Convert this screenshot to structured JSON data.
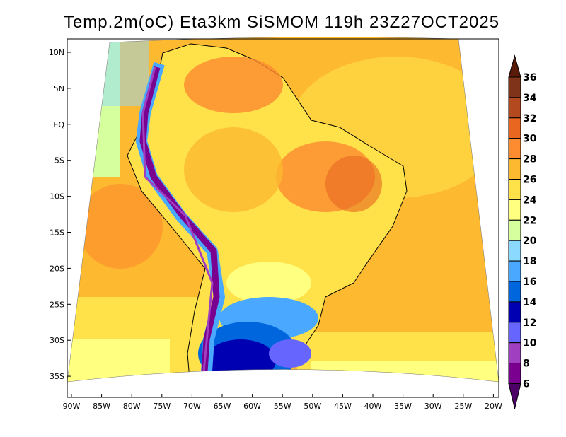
{
  "title": "Temp.2m(oC) Eta3km SiSMOM 119h 23Z27OCT2025",
  "map": {
    "lat_ticks": [
      "10N",
      "5N",
      "EQ",
      "5S",
      "10S",
      "15S",
      "20S",
      "25S",
      "30S",
      "35S"
    ],
    "lon_ticks": [
      "90W",
      "85W",
      "80W",
      "75W",
      "70W",
      "65W",
      "60W",
      "55W",
      "50W",
      "45W",
      "40W",
      "35W",
      "30W",
      "25W",
      "20W"
    ]
  },
  "colorbar": {
    "labels": [
      "36",
      "34",
      "32",
      "30",
      "28",
      "26",
      "24",
      "22",
      "20",
      "18",
      "16",
      "14",
      "12",
      "10",
      "8",
      "6"
    ],
    "colors_top_to_bottom": [
      "#7f3318",
      "#b34a1f",
      "#e8661f",
      "#fd8b2f",
      "#fdb92f",
      "#ffe24a",
      "#ffff80",
      "#d6ff9e",
      "#8cd9ff",
      "#4aa8ff",
      "#0066dd",
      "#0000b3",
      "#6666ff",
      "#a040c0",
      "#7a0090"
    ],
    "over_color": "#5a1a0a",
    "under_color": "#4d0066"
  }
}
